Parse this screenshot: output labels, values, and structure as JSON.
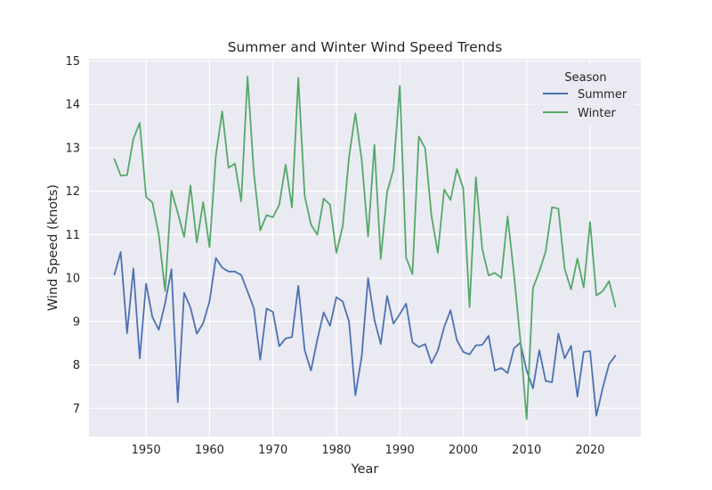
{
  "chart_data": {
    "type": "line",
    "title": "Summer and Winter Wind Speed Trends",
    "xlabel": "Year",
    "ylabel": "Wind Speed (knots)",
    "xlim": [
      1941,
      2028
    ],
    "ylim": [
      6.35,
      15.05
    ],
    "xticks": [
      1950,
      1960,
      1970,
      1980,
      1990,
      2000,
      2010,
      2020
    ],
    "yticks": [
      7,
      8,
      9,
      10,
      11,
      12,
      13,
      14,
      15
    ],
    "grid": true,
    "legend": {
      "title": "Season",
      "position": "top-right"
    },
    "x": [
      1945,
      1946,
      1947,
      1948,
      1949,
      1950,
      1951,
      1952,
      1953,
      1954,
      1955,
      1956,
      1957,
      1958,
      1959,
      1960,
      1961,
      1962,
      1963,
      1964,
      1965,
      1966,
      1967,
      1968,
      1969,
      1970,
      1971,
      1972,
      1973,
      1974,
      1975,
      1976,
      1977,
      1978,
      1979,
      1980,
      1981,
      1982,
      1983,
      1984,
      1985,
      1986,
      1987,
      1988,
      1989,
      1990,
      1991,
      1992,
      1993,
      1994,
      1995,
      1996,
      1997,
      1998,
      1999,
      2000,
      2001,
      2002,
      2003,
      2004,
      2005,
      2006,
      2007,
      2008,
      2009,
      2010,
      2011,
      2012,
      2013,
      2014,
      2015,
      2016,
      2017,
      2018,
      2019,
      2020,
      2021,
      2022,
      2023,
      2024
    ],
    "series": [
      {
        "name": "Summer",
        "color": "#4c72b0",
        "values": [
          10.08,
          10.6,
          8.73,
          10.22,
          8.15,
          9.87,
          9.1,
          8.81,
          9.42,
          10.2,
          7.14,
          9.66,
          9.32,
          8.72,
          8.96,
          9.46,
          10.46,
          10.24,
          10.15,
          10.15,
          10.07,
          9.69,
          9.3,
          8.12,
          9.3,
          9.22,
          8.43,
          8.61,
          8.64,
          9.82,
          8.34,
          7.87,
          8.58,
          9.21,
          8.9,
          9.56,
          9.46,
          9.0,
          7.3,
          8.2,
          10.0,
          9.04,
          8.48,
          9.59,
          8.95,
          9.17,
          9.41,
          8.52,
          8.41,
          8.48,
          8.04,
          8.33,
          8.87,
          9.26,
          8.57,
          8.3,
          8.24,
          8.45,
          8.46,
          8.67,
          7.87,
          7.93,
          7.81,
          8.38,
          8.51,
          7.87,
          7.46,
          8.34,
          7.63,
          7.6,
          8.72,
          8.15,
          8.44,
          7.27,
          8.3,
          8.32,
          6.83,
          7.47,
          8.02,
          8.21
        ]
      },
      {
        "name": "Winter",
        "color": "#55a868",
        "values": [
          12.74,
          12.36,
          12.37,
          13.21,
          13.57,
          11.87,
          11.74,
          11.0,
          9.7,
          12.01,
          11.5,
          10.95,
          12.13,
          10.82,
          11.75,
          10.71,
          12.82,
          13.84,
          12.54,
          12.64,
          11.77,
          14.64,
          12.41,
          11.1,
          11.45,
          11.4,
          11.69,
          12.61,
          11.63,
          14.61,
          11.9,
          11.23,
          11.0,
          11.83,
          11.69,
          10.58,
          11.19,
          12.79,
          13.79,
          12.72,
          10.96,
          13.07,
          10.44,
          11.98,
          12.5,
          14.43,
          10.47,
          10.09,
          13.26,
          12.99,
          11.43,
          10.58,
          12.04,
          11.8,
          12.51,
          12.07,
          9.33,
          12.32,
          10.67,
          10.06,
          10.12,
          10.0,
          11.42,
          10.09,
          8.58,
          6.75,
          9.77,
          10.15,
          10.61,
          11.63,
          11.6,
          10.21,
          9.74,
          10.45,
          9.78,
          11.29,
          9.6,
          9.7,
          9.93,
          9.34
        ]
      }
    ]
  }
}
